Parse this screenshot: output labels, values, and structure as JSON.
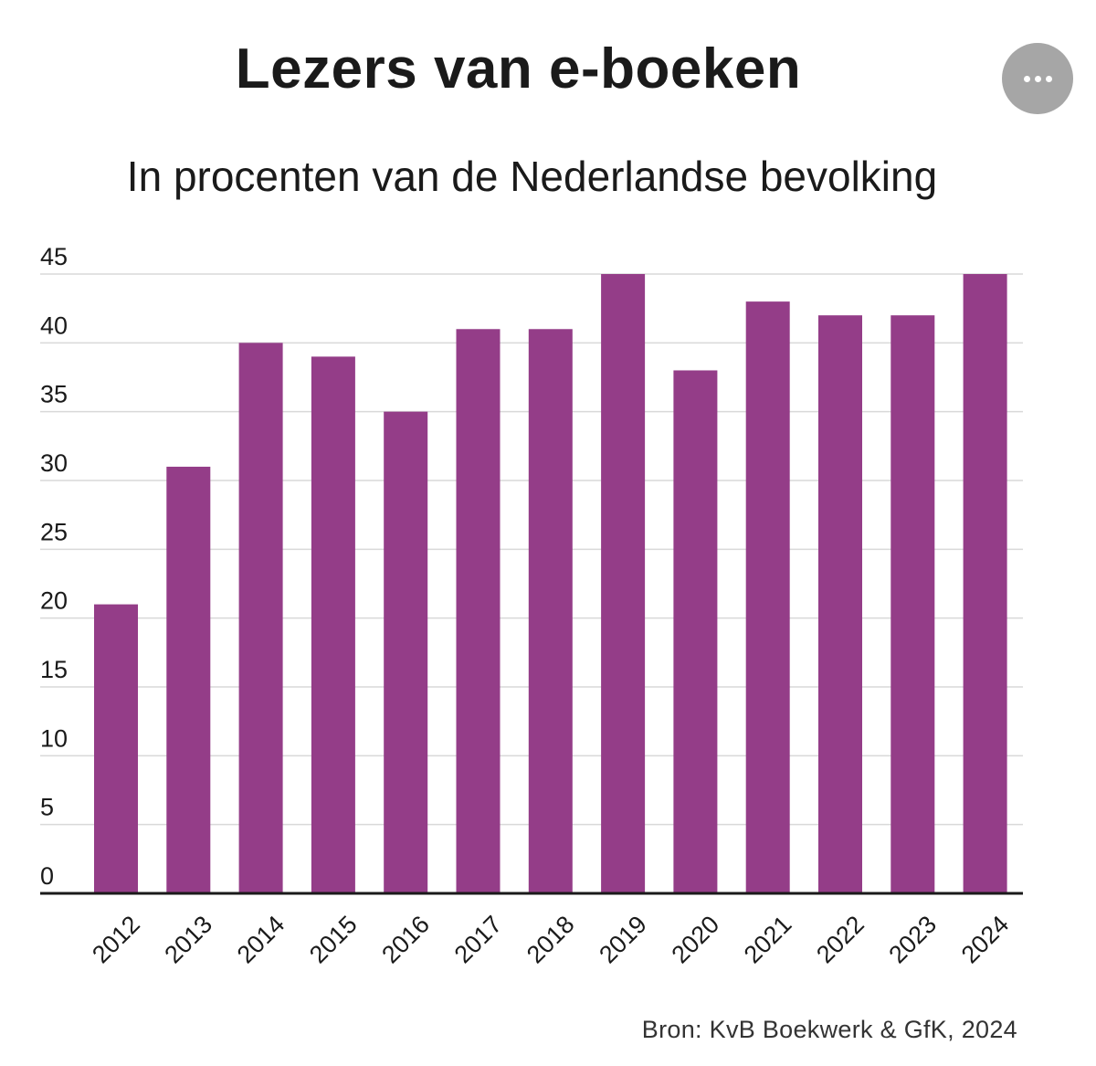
{
  "header": {
    "title": "Lezers van e-boeken",
    "subtitle": "In procenten van de Nederlandse bevolking",
    "more_icon": "ellipsis-icon"
  },
  "colors": {
    "bar": "#943D88",
    "grid": "#d9d9d9",
    "axis": "#1a1a1a",
    "text": "#1a1a1a",
    "more_button_bg": "#a6a6a6"
  },
  "chart_data": {
    "type": "bar",
    "title": "Lezers van e-boeken",
    "subtitle": "In procenten van de Nederlandse bevolking",
    "categories": [
      "2012",
      "2013",
      "2014",
      "2015",
      "2016",
      "2017",
      "2018",
      "2019",
      "2020",
      "2021",
      "2022",
      "2023",
      "2024"
    ],
    "values": [
      21,
      31,
      40,
      39,
      35,
      41,
      41,
      45,
      38,
      43,
      42,
      42,
      45
    ],
    "ylim": [
      0,
      45
    ],
    "yticks": [
      0,
      5,
      10,
      15,
      20,
      25,
      30,
      35,
      40,
      45
    ],
    "xlabel": "",
    "ylabel": "",
    "grid": true,
    "legend": "none"
  },
  "footer": {
    "source": "Bron: KvB Boekwerk & GfK, 2024"
  }
}
